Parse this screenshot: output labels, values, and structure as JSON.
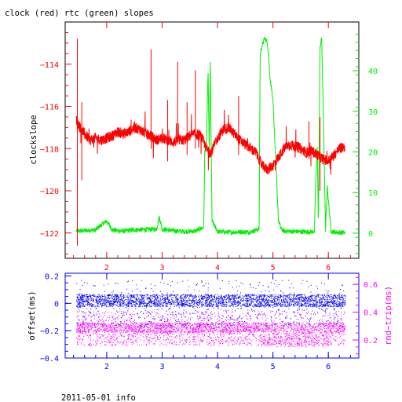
{
  "chart_data": [
    {
      "type": "line",
      "title": "clock (red) rtc (green) slopes",
      "ylabel": "clockslope",
      "xlim": [
        1.25,
        6.55
      ],
      "ylim": [
        -123.2,
        -112.0
      ],
      "y2lim": [
        -6.2,
        52.0
      ],
      "x_ticks": [
        2,
        3,
        4,
        5,
        6
      ],
      "y_ticks": [
        -122,
        -120,
        -118,
        -116,
        -114
      ],
      "y2_ticks": [
        0,
        10,
        20,
        30,
        40
      ],
      "grid": false,
      "colors": {
        "clock": "#ff0000",
        "rtc": "#00ee00",
        "axis": "#ff0000",
        "axis2": "#00ee00",
        "frame": "#000000"
      },
      "series": [
        {
          "axis": "left",
          "color": "#ff0000",
          "x": [
            1.45,
            1.5,
            1.6,
            1.7,
            1.8,
            1.9,
            2.0,
            2.1,
            2.2,
            2.3,
            2.4,
            2.5,
            2.6,
            2.7,
            2.8,
            2.9,
            3.0,
            3.1,
            3.2,
            3.3,
            3.4,
            3.5,
            3.6,
            3.7,
            3.8,
            3.85,
            3.9,
            4.0,
            4.1,
            4.2,
            4.3,
            4.4,
            4.5,
            4.6,
            4.7,
            4.8,
            4.9,
            5.0,
            5.1,
            5.2,
            5.3,
            5.4,
            5.5,
            5.6,
            5.7,
            5.8,
            5.9,
            6.0,
            6.1,
            6.2,
            6.3
          ],
          "y": [
            -116.6,
            -116.9,
            -117.3,
            -117.6,
            -117.5,
            -117.6,
            -117.5,
            -117.4,
            -117.2,
            -117.3,
            -117.2,
            -117.0,
            -117.1,
            -117.3,
            -117.4,
            -117.6,
            -117.5,
            -117.6,
            -117.7,
            -117.6,
            -117.6,
            -117.4,
            -117.3,
            -117.4,
            -118.0,
            -118.2,
            -118.1,
            -117.5,
            -117.1,
            -117.0,
            -117.3,
            -117.6,
            -117.8,
            -118.0,
            -118.2,
            -118.8,
            -119.0,
            -118.8,
            -118.4,
            -118.0,
            -117.8,
            -117.9,
            -118.0,
            -118.2,
            -118.1,
            -118.3,
            -118.5,
            -118.6,
            -118.3,
            -118.0,
            -117.9
          ]
        },
        {
          "axis": "right",
          "color": "#00ee00",
          "x": [
            1.45,
            1.6,
            1.8,
            1.9,
            2.0,
            2.1,
            2.2,
            2.3,
            2.5,
            2.7,
            2.9,
            2.95,
            3.0,
            3.2,
            3.4,
            3.6,
            3.75,
            3.77,
            3.8,
            3.83,
            3.85,
            3.87,
            3.9,
            4.0,
            4.2,
            4.4,
            4.6,
            4.75,
            4.77,
            4.8,
            4.85,
            4.9,
            4.95,
            5.0,
            5.1,
            5.15,
            5.2,
            5.4,
            5.6,
            5.75,
            5.77,
            5.8,
            5.82,
            5.85,
            5.88,
            5.92,
            5.95,
            5.98,
            6.0,
            6.05,
            6.1,
            6.15,
            6.2,
            6.3
          ],
          "y": [
            0.5,
            0.6,
            0.8,
            2.0,
            3.0,
            0.8,
            0.6,
            0.5,
            0.8,
            0.9,
            1.0,
            4.0,
            1.0,
            0.6,
            0.4,
            0.5,
            1.5,
            20,
            22,
            40,
            20,
            42,
            3,
            0.4,
            0.2,
            0.3,
            0.3,
            1.0,
            44,
            46,
            48,
            47,
            38,
            33,
            3,
            1,
            0.5,
            0.4,
            0.3,
            0.4,
            12,
            22,
            2,
            46,
            48,
            22,
            0.5,
            12,
            8,
            0.5,
            0.3,
            0.2,
            0.2,
            0.1
          ]
        }
      ]
    },
    {
      "type": "scatter",
      "ylabel": "offset(ms)",
      "y2label": "rnd−trip(ms)",
      "xlim": [
        1.25,
        6.55
      ],
      "ylim": [
        -0.4,
        0.22
      ],
      "y2lim": [
        0.07,
        0.68
      ],
      "x_ticks": [
        2,
        3,
        4,
        5,
        6
      ],
      "y_ticks": [
        0.2,
        0,
        -0.2,
        -0.4
      ],
      "y_tick_labels": [
        "0.2",
        "0",
        "−0.2",
        "−0.4"
      ],
      "y2_ticks": [
        0.2,
        0.4,
        0.6
      ],
      "grid": false,
      "colors": {
        "offset": "#0000ff",
        "rndtrip": "#ff00ff",
        "axis": "#0000ff",
        "axis2": "#ff00ff"
      },
      "series": [
        {
          "axis": "left",
          "color": "#0000ff",
          "x_range": [
            1.45,
            6.3
          ],
          "y_center": 0.02,
          "y_spread": 0.05
        },
        {
          "axis": "right",
          "color": "#ff00ff",
          "x_range": [
            1.45,
            6.3
          ],
          "y_center": 0.3,
          "y_spread": 0.04
        }
      ]
    }
  ],
  "footer": "2011-05-01 info"
}
